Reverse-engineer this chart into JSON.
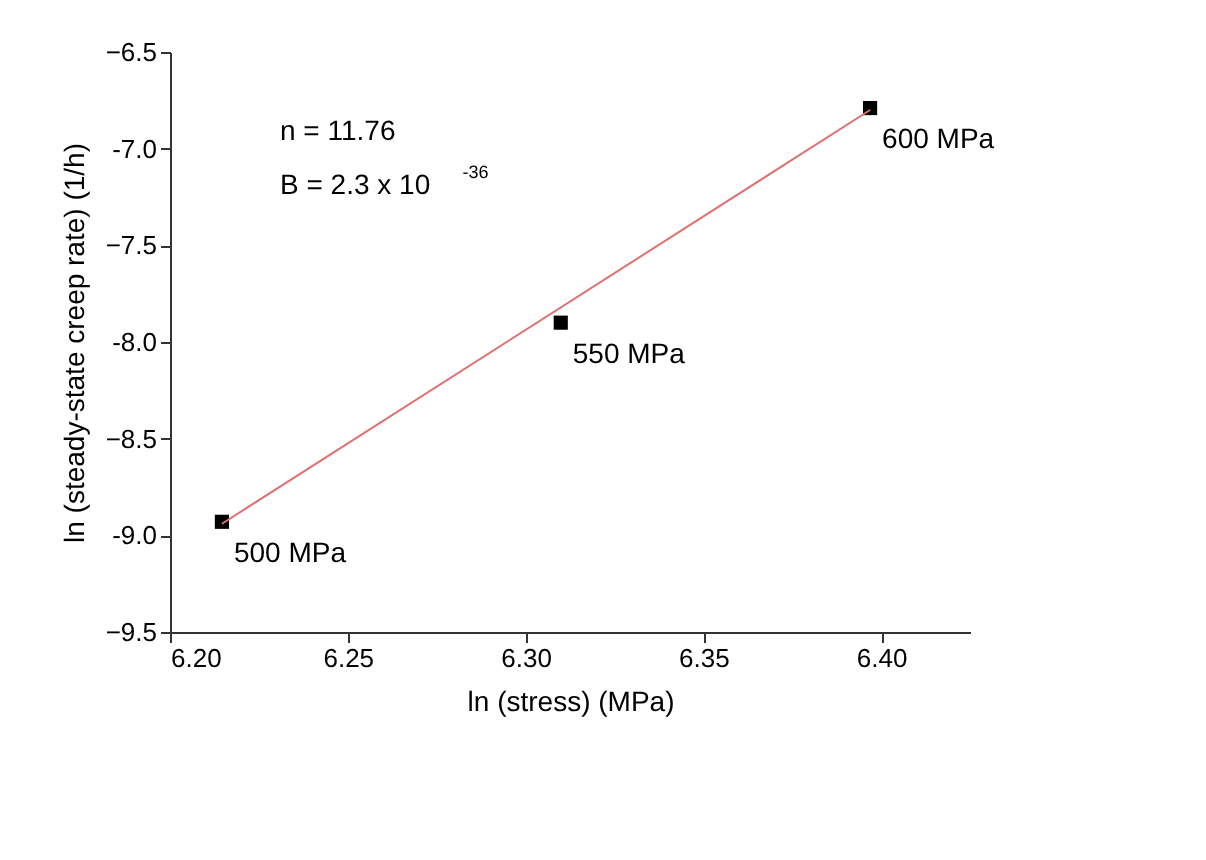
{
  "chart_data": {
    "type": "scatter",
    "xlabel": "ln (stress) (MPa)",
    "ylabel": "ln (steady-state creep rate) (1/h)",
    "xlim": [
      6.2,
      6.425
    ],
    "xticks": [
      {
        "value": 6.2,
        "label": "6.20"
      },
      6.25,
      {
        "value": 6.3,
        "label": "6.30"
      },
      6.35,
      {
        "value": 6.4,
        "label": "6.40"
      }
    ],
    "ylim": [
      -9.5,
      -6.5
    ],
    "yticks": [
      -9.5,
      {
        "value": -9,
        "label": "-9.0"
      },
      -8.5,
      {
        "value": -8,
        "label": "-8.0"
      },
      -7.5,
      {
        "value": -7,
        "label": "-7.0"
      },
      -6.5
    ],
    "grid": false,
    "marker": "square",
    "series": [
      {
        "color": "#000000",
        "x": [
          6.2146,
          6.3099,
          6.3969
        ],
        "values": [
          -8.93,
          -7.9,
          -6.79
        ]
      },
      {
        "type": "line",
        "color": "#e07070",
        "x": [
          6.2146,
          6.3969
        ],
        "values": [
          -8.94,
          -6.8
        ],
        "marker": "none",
        "line_style": "solid"
      }
    ],
    "annotations": [
      "n = 11.76",
      "B = 2.3 x 10$^{-36}$",
      {
        "text": "500 MPa",
        "x": 6.2146,
        "y": -8.93
      },
      {
        "text": "550 MPa",
        "x": 6.3099,
        "y": -7.9
      },
      {
        "text": "600 MPa",
        "x": 6.3969,
        "y": -6.79
      }
    ]
  }
}
